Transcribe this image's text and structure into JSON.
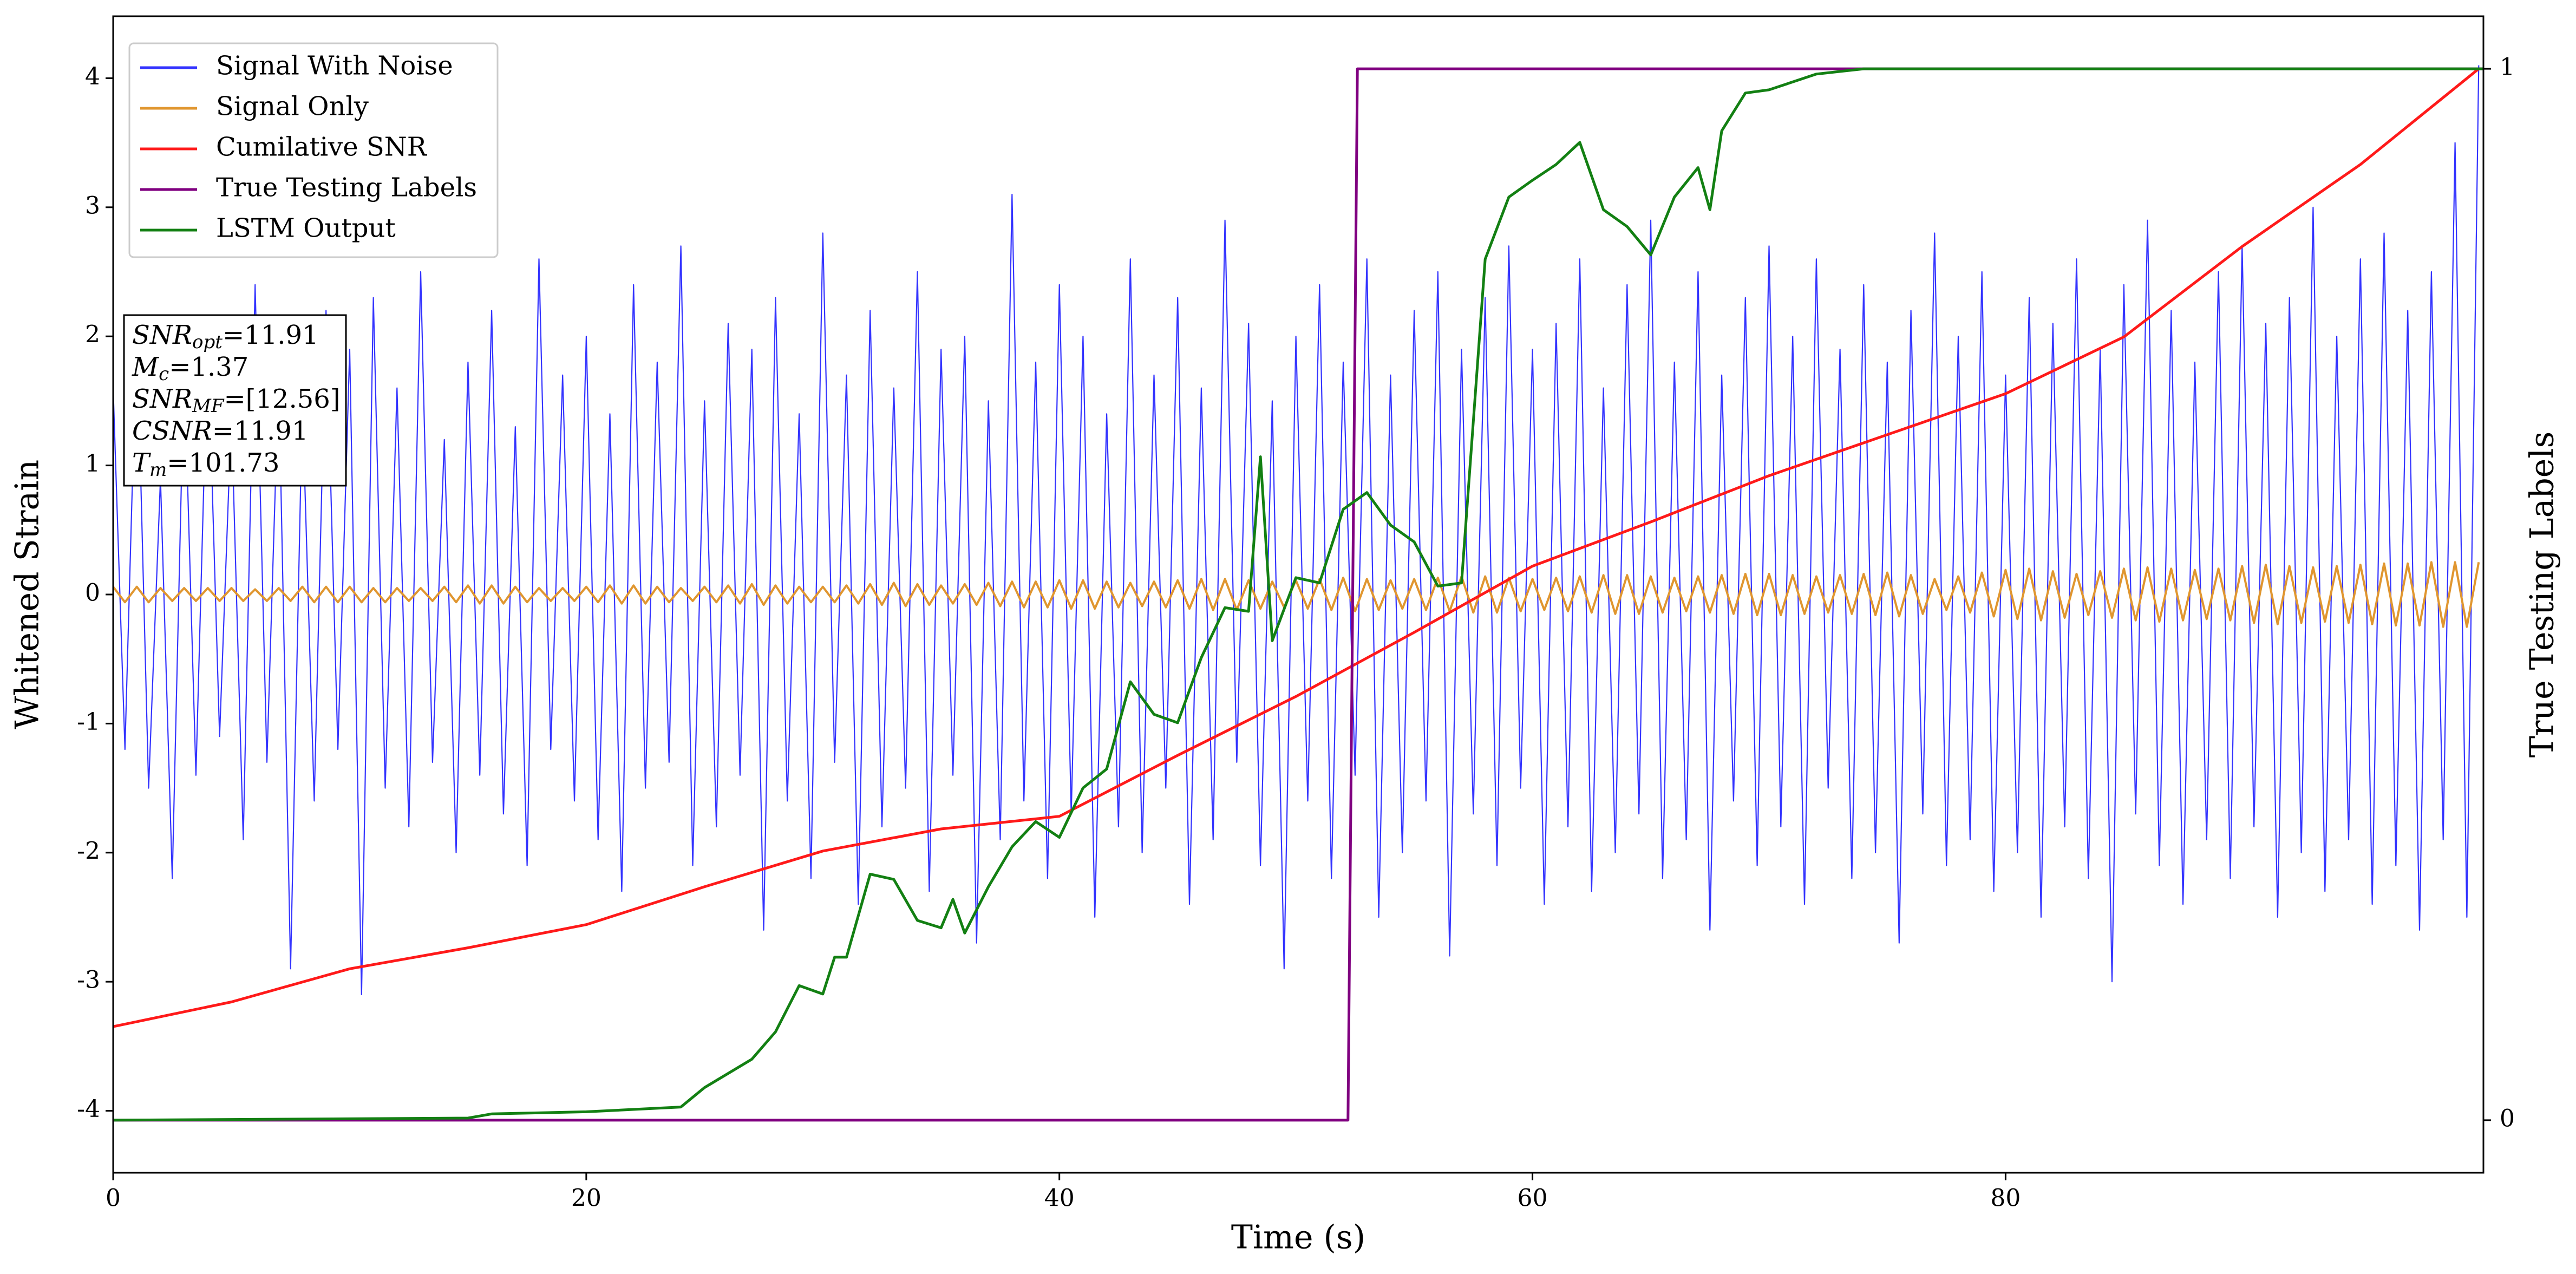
{
  "chart_data": {
    "type": "line",
    "xlabel": "Time (s)",
    "ylabel": "Whitened Strain",
    "y2label": "True Testing Labels",
    "xlim": [
      0,
      100.2
    ],
    "xticks": [
      0,
      20,
      40,
      60,
      80
    ],
    "ylim": [
      -4.48,
      4.48
    ],
    "yticks": [
      -4,
      -3,
      -2,
      -1,
      0,
      1,
      2,
      3,
      4
    ],
    "y2lim": [
      -0.05,
      1.05
    ],
    "y2ticks": [
      0,
      1
    ],
    "legend": "upper left",
    "grid": false,
    "x": [
      0,
      0.5,
      1,
      1.5,
      2,
      2.5,
      3,
      3.5,
      4,
      4.5,
      5,
      5.5,
      6,
      6.5,
      7,
      7.5,
      8,
      8.5,
      9,
      9.5,
      10,
      10.5,
      11,
      11.5,
      12,
      12.5,
      13,
      13.5,
      14,
      14.5,
      15,
      15.5,
      16,
      16.5,
      17,
      17.5,
      18,
      18.5,
      19,
      19.5,
      20,
      20.5,
      21,
      21.5,
      22,
      22.5,
      23,
      23.5,
      24,
      24.5,
      25,
      25.5,
      26,
      26.5,
      27,
      27.5,
      28,
      28.5,
      29,
      29.5,
      30,
      30.5,
      31,
      31.5,
      32,
      32.5,
      33,
      33.5,
      34,
      34.5,
      35,
      35.5,
      36,
      36.5,
      37,
      37.5,
      38,
      38.5,
      39,
      39.5,
      40,
      40.5,
      41,
      41.5,
      42,
      42.5,
      43,
      43.5,
      44,
      44.5,
      45,
      45.5,
      46,
      46.5,
      47,
      47.5,
      48,
      48.5,
      49,
      49.5,
      50,
      50.5,
      51,
      51.5,
      52,
      52.5,
      53,
      53.5,
      54,
      54.5,
      55,
      55.5,
      56,
      56.5,
      57,
      57.5,
      58,
      58.5,
      59,
      59.5,
      60,
      60.5,
      61,
      61.5,
      62,
      62.5,
      63,
      63.5,
      64,
      64.5,
      65,
      65.5,
      66,
      66.5,
      67,
      67.5,
      68,
      68.5,
      69,
      69.5,
      70,
      70.5,
      71,
      71.5,
      72,
      72.5,
      73,
      73.5,
      74,
      74.5,
      75,
      75.5,
      76,
      76.5,
      77,
      77.5,
      78,
      78.5,
      79,
      79.5,
      80,
      80.5,
      81,
      81.5,
      82,
      82.5,
      83,
      83.5,
      84,
      84.5,
      85,
      85.5,
      86,
      86.5,
      87,
      87.5,
      88,
      88.5,
      89,
      89.5,
      90,
      90.5,
      91,
      91.5,
      92,
      92.5,
      93,
      93.5,
      94,
      94.5,
      95,
      95.5,
      96,
      96.5,
      97,
      97.5,
      98,
      98.5,
      99,
      99.5,
      100
    ],
    "series": [
      {
        "name": "Signal With Noise",
        "color": "#3333ff",
        "axis": "y",
        "values": [
          1.6,
          -1.2,
          2.1,
          -1.5,
          0.9,
          -2.2,
          1.8,
          -1.4,
          2.0,
          -1.1,
          1.4,
          -1.9,
          2.4,
          -1.3,
          1.7,
          -2.9,
          1.5,
          -1.6,
          2.2,
          -1.2,
          1.9,
          -3.1,
          2.3,
          -1.5,
          1.6,
          -1.8,
          2.5,
          -1.3,
          1.2,
          -2.0,
          1.8,
          -1.4,
          2.2,
          -1.7,
          1.3,
          -2.1,
          2.6,
          -1.2,
          1.7,
          -1.6,
          2.0,
          -1.9,
          1.4,
          -2.3,
          2.4,
          -1.5,
          1.8,
          -1.3,
          2.7,
          -2.1,
          1.5,
          -1.8,
          2.1,
          -1.4,
          1.9,
          -2.6,
          2.3,
          -1.6,
          1.4,
          -2.2,
          2.8,
          -1.3,
          1.7,
          -2.4,
          2.2,
          -1.8,
          1.6,
          -1.5,
          2.5,
          -2.3,
          1.9,
          -1.4,
          2.0,
          -2.7,
          1.5,
          -1.9,
          3.1,
          -1.6,
          1.8,
          -2.2,
          2.4,
          -1.7,
          2.0,
          -2.5,
          1.4,
          -1.8,
          2.6,
          -2.0,
          1.7,
          -1.5,
          2.3,
          -2.4,
          1.6,
          -1.9,
          2.9,
          -1.3,
          2.1,
          -2.1,
          1.5,
          -2.9,
          2.0,
          -1.6,
          2.4,
          -2.2,
          1.8,
          -1.4,
          2.6,
          -2.5,
          1.7,
          -2.0,
          2.2,
          -1.6,
          2.5,
          -2.8,
          1.9,
          -1.7,
          2.3,
          -2.1,
          2.7,
          -1.5,
          1.9,
          -2.4,
          2.1,
          -1.8,
          2.6,
          -2.3,
          1.6,
          -2.0,
          2.4,
          -1.7,
          2.9,
          -2.2,
          1.8,
          -1.9,
          2.5,
          -2.6,
          1.7,
          -1.6,
          2.3,
          -2.1,
          2.7,
          -1.8,
          2.0,
          -2.4,
          2.6,
          -1.5,
          1.9,
          -2.2,
          2.4,
          -2.0,
          1.8,
          -2.7,
          2.2,
          -1.7,
          2.8,
          -2.1,
          2.0,
          -1.9,
          2.5,
          -2.3,
          1.7,
          -2.0,
          2.3,
          -2.5,
          2.1,
          -1.8,
          2.6,
          -2.2,
          1.9,
          -3.0,
          2.4,
          -1.7,
          2.9,
          -2.1,
          2.2,
          -2.4,
          1.8,
          -1.9,
          2.5,
          -2.2,
          2.7,
          -1.8,
          2.1,
          -2.5,
          2.3,
          -2.0,
          3.0,
          -2.3,
          2.0,
          -1.9,
          2.6,
          -2.4,
          2.8,
          -2.1,
          2.2,
          -2.6,
          2.5,
          -1.9,
          3.5,
          -2.5,
          4.1
        ],
        "width": 2.2
      },
      {
        "name": "Signal Only",
        "color": "#e0962f",
        "axis": "y",
        "values": [
          0.06,
          -0.06,
          0.06,
          -0.06,
          0.05,
          -0.05,
          0.05,
          -0.05,
          0.05,
          -0.05,
          0.05,
          -0.05,
          0.04,
          -0.05,
          0.05,
          -0.05,
          0.06,
          -0.06,
          0.06,
          -0.06,
          0.06,
          -0.06,
          0.05,
          -0.06,
          0.05,
          -0.05,
          0.05,
          -0.05,
          0.06,
          -0.06,
          0.07,
          -0.07,
          0.07,
          -0.07,
          0.06,
          -0.06,
          0.05,
          -0.05,
          0.05,
          -0.05,
          0.06,
          -0.06,
          0.07,
          -0.07,
          0.07,
          -0.07,
          0.06,
          -0.06,
          0.05,
          -0.05,
          0.06,
          -0.06,
          0.07,
          -0.07,
          0.08,
          -0.08,
          0.07,
          -0.07,
          0.06,
          -0.06,
          0.06,
          -0.06,
          0.07,
          -0.07,
          0.08,
          -0.08,
          0.09,
          -0.09,
          0.08,
          -0.08,
          0.07,
          -0.07,
          0.08,
          -0.08,
          0.09,
          -0.09,
          0.1,
          -0.1,
          0.1,
          -0.1,
          0.11,
          -0.11,
          0.11,
          -0.11,
          0.1,
          -0.1,
          0.09,
          -0.09,
          0.1,
          -0.1,
          0.11,
          -0.11,
          0.12,
          -0.12,
          0.12,
          -0.12,
          0.11,
          -0.11,
          0.1,
          -0.1,
          0.11,
          -0.11,
          0.12,
          -0.12,
          0.13,
          -0.13,
          0.12,
          -0.12,
          0.11,
          -0.11,
          0.12,
          -0.12,
          0.13,
          -0.13,
          0.14,
          -0.14,
          0.14,
          -0.14,
          0.13,
          -0.13,
          0.12,
          -0.12,
          0.13,
          -0.13,
          0.14,
          -0.14,
          0.15,
          -0.15,
          0.15,
          -0.15,
          0.14,
          -0.14,
          0.13,
          -0.13,
          0.14,
          -0.14,
          0.15,
          -0.15,
          0.16,
          -0.16,
          0.16,
          -0.16,
          0.15,
          -0.15,
          0.14,
          -0.14,
          0.15,
          -0.15,
          0.16,
          -0.16,
          0.17,
          -0.17,
          0.15,
          -0.15,
          0.12,
          -0.12,
          0.14,
          -0.14,
          0.17,
          -0.17,
          0.19,
          -0.19,
          0.2,
          -0.2,
          0.18,
          -0.18,
          0.16,
          -0.16,
          0.18,
          -0.18,
          0.2,
          -0.2,
          0.21,
          -0.21,
          0.2,
          -0.2,
          0.19,
          -0.19,
          0.2,
          -0.2,
          0.22,
          -0.22,
          0.23,
          -0.23,
          0.22,
          -0.22,
          0.21,
          -0.21,
          0.22,
          -0.22,
          0.23,
          -0.23,
          0.24,
          -0.24,
          0.24,
          -0.24,
          0.25,
          -0.25,
          0.25,
          -0.25,
          0.25
        ],
        "width": 4
      },
      {
        "name": "Cumilative SNR",
        "color": "#ff1a1a",
        "axis": "y2",
        "x": [
          0,
          5,
          10,
          15,
          20,
          25,
          30,
          35,
          40,
          45,
          50,
          55,
          60,
          65,
          70,
          75,
          80,
          85,
          90,
          95,
          100
        ],
        "values": [
          0.089,
          0.1125,
          0.144,
          0.164,
          0.186,
          0.222,
          0.256,
          0.277,
          0.289,
          0.347,
          0.403,
          0.464,
          0.527,
          0.569,
          0.613,
          0.652,
          0.691,
          0.745,
          0.831,
          0.909,
          1.0
        ],
        "width": 5
      },
      {
        "name": "True Testing Labels",
        "color": "#800080",
        "axis": "y2",
        "x": [
          0,
          52.2,
          52.6,
          100.2
        ],
        "values": [
          0,
          0,
          1,
          1
        ],
        "width": 5
      },
      {
        "name": "LSTM Output",
        "color": "#138013",
        "axis": "y2",
        "x": [
          0,
          15,
          16,
          20,
          24,
          25,
          27,
          28,
          29,
          30,
          30.5,
          31,
          32,
          33,
          34,
          35,
          35.5,
          36,
          37,
          38,
          39,
          40,
          41,
          42,
          43,
          44,
          45,
          46,
          47,
          48,
          48.5,
          49,
          50,
          51,
          52,
          53,
          54,
          55,
          56,
          57,
          58,
          59,
          60,
          61,
          62,
          63,
          64,
          65,
          66,
          67,
          67.5,
          68,
          69,
          70,
          72,
          74,
          100.2
        ],
        "values": [
          0,
          0.002,
          0.006,
          0.008,
          0.0125,
          0.031,
          0.058,
          0.084,
          0.128,
          0.12,
          0.155,
          0.155,
          0.234,
          0.229,
          0.19,
          0.183,
          0.21,
          0.178,
          0.222,
          0.26,
          0.284,
          0.269,
          0.316,
          0.334,
          0.417,
          0.386,
          0.378,
          0.44,
          0.4875,
          0.484,
          0.631,
          0.456,
          0.516,
          0.511,
          0.581,
          0.597,
          0.566,
          0.55,
          0.508,
          0.511,
          0.819,
          0.878,
          0.894,
          0.909,
          0.93,
          0.866,
          0.85,
          0.823,
          0.878,
          0.906,
          0.866,
          0.941,
          0.977,
          0.98,
          0.995,
          1,
          1
        ],
        "width": 5
      }
    ],
    "annotations": [
      {
        "symbol": "SNR",
        "subscript": "opt",
        "text": "=11.91"
      },
      {
        "symbol": "M",
        "subscript": "c",
        "text": "=1.37"
      },
      {
        "symbol": "SNR",
        "subscript": "MF",
        "text": "=[12.56]"
      },
      {
        "symbol": "CSNR",
        "text": "=11.91"
      },
      {
        "symbol": "T",
        "subscript": "m",
        "text": "=101.73"
      }
    ]
  }
}
